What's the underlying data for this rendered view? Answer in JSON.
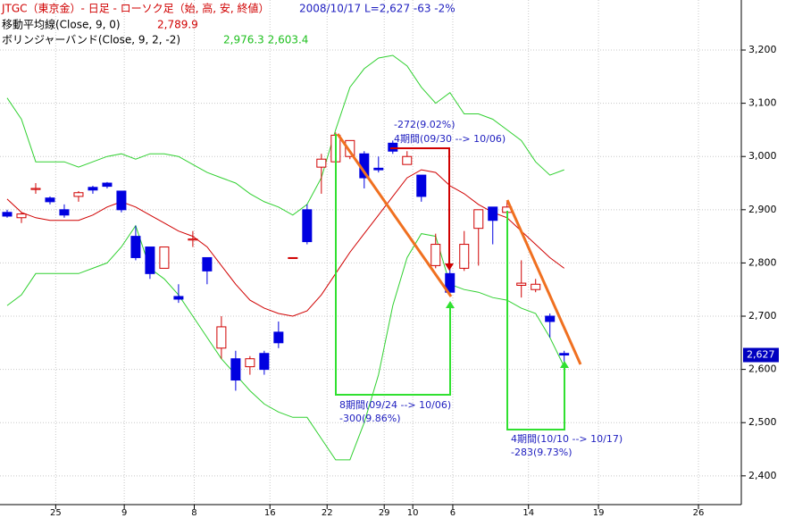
{
  "header": {
    "title": "JTGC（東京金）- 日足 - ローソク足（始, 高, 安, 終値）",
    "status": "2008/10/17  L=2,627  -63  -2%",
    "ma_label": "移動平均線(Close, 9, 0)",
    "ma_value": "2,789.9",
    "bb_label": "ボリンジャーバンド(Close, 9, 2, -2)",
    "bb_values": "2,976.3  2,603.4"
  },
  "chart_data": {
    "type": "candlestick",
    "up_color": "#d00000",
    "down_color": "#0000e0",
    "open": [
      2895,
      2885,
      2938,
      2922,
      2900,
      2925,
      2942,
      2950,
      2935,
      2850,
      2830,
      2790,
      2737,
      2843,
      2810,
      2640,
      2620,
      2605,
      2630,
      2670,
      2810,
      2900,
      2980,
      2990,
      3000,
      3005,
      2978,
      3025,
      2985,
      2965,
      2795,
      2780,
      2790,
      2865,
      2905,
      2895,
      2758,
      2750,
      2700,
      2630
    ],
    "high": [
      2900,
      2895,
      2950,
      2925,
      2910,
      2935,
      2945,
      2952,
      2935,
      2870,
      2830,
      2830,
      2760,
      2860,
      2810,
      2700,
      2635,
      2625,
      2635,
      2690,
      2810,
      2910,
      3005,
      3045,
      3030,
      3010,
      3000,
      3030,
      3010,
      2965,
      2855,
      2790,
      2860,
      2900,
      2905,
      2915,
      2805,
      2770,
      2705,
      2635
    ],
    "low": [
      2885,
      2875,
      2930,
      2910,
      2885,
      2915,
      2930,
      2940,
      2895,
      2805,
      2770,
      2790,
      2725,
      2830,
      2760,
      2620,
      2560,
      2590,
      2590,
      2640,
      2810,
      2835,
      2930,
      2985,
      2995,
      2940,
      2970,
      3005,
      2985,
      2915,
      2790,
      2740,
      2785,
      2795,
      2835,
      2885,
      2735,
      2745,
      2660,
      2612
    ],
    "close": [
      2888,
      2892,
      2940,
      2915,
      2890,
      2932,
      2937,
      2944,
      2900,
      2810,
      2780,
      2830,
      2732,
      2845,
      2785,
      2680,
      2580,
      2620,
      2600,
      2650,
      2810,
      2840,
      2995,
      3040,
      3030,
      2960,
      2975,
      3010,
      3000,
      2925,
      2835,
      2745,
      2835,
      2900,
      2880,
      2905,
      2762,
      2760,
      2690,
      2627
    ],
    "series": [
      {
        "name": "移動平均線",
        "color": "#d00000",
        "values": [
          2920,
          2895,
          2885,
          2880,
          2880,
          2880,
          2890,
          2905,
          2915,
          2905,
          2890,
          2875,
          2860,
          2850,
          2830,
          2795,
          2760,
          2730,
          2715,
          2705,
          2700,
          2710,
          2740,
          2780,
          2820,
          2855,
          2890,
          2925,
          2960,
          2975,
          2970,
          2945,
          2930,
          2910,
          2895,
          2885,
          2860,
          2835,
          2810,
          2790
        ]
      },
      {
        "name": "ボリンジャーバンド",
        "color": "#30d030",
        "values": [
          3110,
          3070,
          2990,
          2990,
          2990,
          2980,
          2990,
          3000,
          3005,
          2995,
          3005,
          3005,
          3000,
          2985,
          2970,
          2960,
          2950,
          2930,
          2915,
          2905,
          2890,
          2910,
          2960,
          3050,
          3130,
          3165,
          3185,
          3190,
          3170,
          3130,
          3100,
          3120,
          3080,
          3080,
          3070,
          3050,
          3030,
          2990,
          2965,
          2975
        ]
      },
      {
        "name": "ボリンジャーバンド",
        "color": "#30d030",
        "values": [
          2720,
          2740,
          2780,
          2780,
          2780,
          2780,
          2790,
          2800,
          2830,
          2870,
          2790,
          2770,
          2740,
          2700,
          2660,
          2620,
          2590,
          2560,
          2535,
          2520,
          2510,
          2510,
          2470,
          2430,
          2430,
          2500,
          2590,
          2720,
          2810,
          2855,
          2850,
          2760,
          2750,
          2745,
          2735,
          2730,
          2715,
          2705,
          2660,
          2605
        ]
      }
    ],
    "last_label": "2,627",
    "ylim": [
      2346,
      3294
    ],
    "yticks": [
      {
        "value": 2400,
        "label": "2,400"
      },
      {
        "value": 2500,
        "label": "2,500"
      },
      {
        "value": 2600,
        "label": "2,600"
      },
      {
        "value": 2700,
        "label": "2,700"
      },
      {
        "value": 2800,
        "label": "2,800"
      },
      {
        "value": 2900,
        "label": "2,900"
      },
      {
        "value": 3000,
        "label": "3,000"
      },
      {
        "value": 3100,
        "label": "3,100"
      },
      {
        "value": 3200,
        "label": "3,200"
      }
    ],
    "xlim": [
      -0.5,
      51.4
    ],
    "xticks": [
      {
        "value": 3.4,
        "label": "25"
      },
      {
        "value": 8.2,
        "label": "9"
      },
      {
        "value": 13.1,
        "label": "8"
      },
      {
        "value": 18.4,
        "label": "16"
      },
      {
        "value": 22.4,
        "label": "22"
      },
      {
        "value": 26.4,
        "label": "29"
      },
      {
        "value": 28.4,
        "label": "10"
      },
      {
        "value": 31.2,
        "label": "6"
      },
      {
        "value": 36.5,
        "label": "14"
      },
      {
        "value": 41.4,
        "label": "19"
      },
      {
        "value": 48.4,
        "label": "26"
      }
    ],
    "grid": true,
    "annotations": [
      "-272(9.02%)",
      "4期間(09/30 --> 10/06)",
      "8期間(09/24 --> 10/06)",
      "-300(9.86%)",
      "4期間(10/10 --> 10/17)",
      "-283(9.73%)"
    ]
  }
}
